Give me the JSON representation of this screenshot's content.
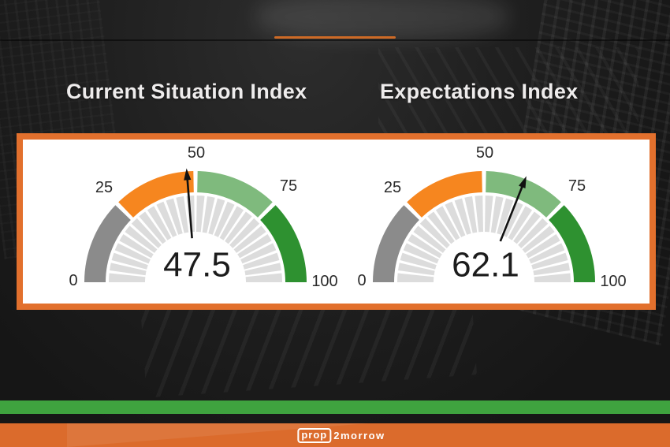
{
  "header": {
    "divider_color": "#cd6a26"
  },
  "chart_data": [
    {
      "type": "gauge",
      "title": "Current Situation Index",
      "value": 47.5,
      "min": 0,
      "max": 100,
      "axis_tick_labels": [
        "0",
        "25",
        "50",
        "75",
        "100"
      ],
      "segments": [
        {
          "from": 0,
          "to": 25,
          "color": "#8b8b8b"
        },
        {
          "from": 25,
          "to": 50,
          "color": "#f6861f"
        },
        {
          "from": 50,
          "to": 75,
          "color": "#7fba7d"
        },
        {
          "from": 75,
          "to": 100,
          "color": "#2e9130"
        }
      ],
      "tick_block_color": "#dcdcdc",
      "needle_color": "#111111",
      "value_color": "#1c1c1c",
      "label_color": "#2b2b2b"
    },
    {
      "type": "gauge",
      "title": "Expectations Index",
      "value": 62.1,
      "min": 0,
      "max": 100,
      "axis_tick_labels": [
        "0",
        "25",
        "50",
        "75",
        "100"
      ],
      "segments": [
        {
          "from": 0,
          "to": 25,
          "color": "#8b8b8b"
        },
        {
          "from": 25,
          "to": 50,
          "color": "#f6861f"
        },
        {
          "from": 50,
          "to": 75,
          "color": "#7fba7d"
        },
        {
          "from": 75,
          "to": 100,
          "color": "#2e9130"
        }
      ],
      "tick_block_color": "#dcdcdc",
      "needle_color": "#111111",
      "value_color": "#1c1c1c",
      "label_color": "#2b2b2b"
    }
  ],
  "panel": {
    "background": "#ffffff",
    "border_color": "#e2702d"
  },
  "footer": {
    "stripe_color": "#3fa33f",
    "bar_color": "#db6b2c",
    "logo_prop": "prop",
    "logo_rest": "2morrow"
  }
}
